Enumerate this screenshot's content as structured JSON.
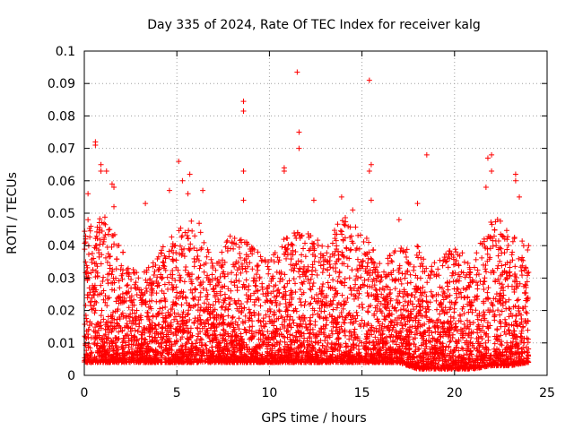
{
  "chart_data": {
    "type": "scatter",
    "title": "Day 335 of 2024, Rate Of TEC Index for receiver kalg",
    "xlabel": "GPS time / hours",
    "ylabel": "ROTI / TECUs",
    "xlim": [
      0,
      25
    ],
    "ylim": [
      0,
      0.1
    ],
    "xticks": [
      "0",
      "5",
      "10",
      "15",
      "20",
      "25"
    ],
    "yticks": [
      "0",
      "0.01",
      "0.02",
      "0.03",
      "0.04",
      "0.05",
      "0.06",
      "0.07",
      "0.08",
      "0.09",
      "0.1"
    ],
    "grid": true,
    "marker": "+",
    "color": "#ff0000",
    "series": [
      {
        "name": "ROTI",
        "points": [
          [
            0.6,
            0.072
          ],
          [
            0.6,
            0.071
          ],
          [
            0.9,
            0.065
          ],
          [
            0.9,
            0.063
          ],
          [
            1.2,
            0.063
          ],
          [
            1.5,
            0.059
          ],
          [
            1.6,
            0.058
          ],
          [
            0.2,
            0.056
          ],
          [
            0.2,
            0.048
          ],
          [
            1.6,
            0.052
          ],
          [
            3.3,
            0.053
          ],
          [
            4.6,
            0.057
          ],
          [
            5.1,
            0.066
          ],
          [
            5.3,
            0.06
          ],
          [
            5.6,
            0.056
          ],
          [
            5.7,
            0.062
          ],
          [
            6.4,
            0.057
          ],
          [
            8.6,
            0.0845
          ],
          [
            8.6,
            0.0815
          ],
          [
            8.6,
            0.063
          ],
          [
            8.6,
            0.054
          ],
          [
            10.8,
            0.064
          ],
          [
            10.8,
            0.063
          ],
          [
            11.5,
            0.0935
          ],
          [
            11.6,
            0.075
          ],
          [
            11.6,
            0.07
          ],
          [
            12.4,
            0.054
          ],
          [
            13.9,
            0.055
          ],
          [
            14.5,
            0.051
          ],
          [
            15.4,
            0.091
          ],
          [
            15.5,
            0.065
          ],
          [
            15.4,
            0.063
          ],
          [
            15.5,
            0.054
          ],
          [
            17.0,
            0.048
          ],
          [
            18.0,
            0.053
          ],
          [
            18.5,
            0.068
          ],
          [
            21.8,
            0.067
          ],
          [
            22.0,
            0.068
          ],
          [
            22.0,
            0.063
          ],
          [
            21.7,
            0.058
          ],
          [
            23.3,
            0.062
          ],
          [
            23.3,
            0.06
          ],
          [
            23.5,
            0.055
          ],
          [
            24.0,
            0.04
          ]
        ]
      }
    ],
    "density_envelope_note": "dense band of points between roughly 0.002 and 0.035 TECUs across 0-24 h",
    "envelope_hours": [
      0,
      1,
      2,
      3,
      4,
      5,
      6,
      7,
      8,
      9,
      10,
      11,
      12,
      13,
      14,
      15,
      16,
      17,
      18,
      19,
      20,
      21,
      22,
      23,
      24
    ],
    "envelope_upper": [
      0.045,
      0.05,
      0.04,
      0.03,
      0.038,
      0.045,
      0.05,
      0.035,
      0.045,
      0.04,
      0.035,
      0.045,
      0.045,
      0.04,
      0.05,
      0.045,
      0.035,
      0.04,
      0.04,
      0.035,
      0.04,
      0.035,
      0.05,
      0.045,
      0.04
    ],
    "envelope_lower": [
      0.004,
      0.004,
      0.004,
      0.004,
      0.004,
      0.004,
      0.004,
      0.004,
      0.004,
      0.004,
      0.004,
      0.004,
      0.004,
      0.004,
      0.004,
      0.004,
      0.004,
      0.004,
      0.002,
      0.002,
      0.002,
      0.002,
      0.003,
      0.003,
      0.004
    ]
  }
}
